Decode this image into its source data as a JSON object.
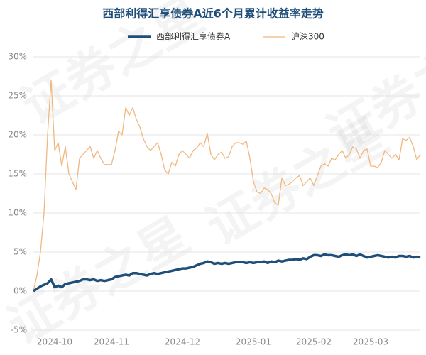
{
  "chart_data": {
    "type": "line",
    "title": "西部利得汇享债券A近6个月累计收益率走势",
    "watermark": "证券之星",
    "categories": [
      null,
      null,
      null,
      null,
      null,
      null,
      "2024-10",
      null,
      null,
      null,
      null,
      null,
      null,
      null,
      null,
      null,
      null,
      null,
      null,
      null,
      null,
      null,
      "2024-11",
      null,
      null,
      null,
      null,
      null,
      null,
      null,
      null,
      null,
      null,
      null,
      null,
      null,
      null,
      null,
      null,
      null,
      null,
      null,
      "2024-12",
      null,
      null,
      null,
      null,
      null,
      null,
      null,
      null,
      null,
      null,
      null,
      null,
      null,
      null,
      null,
      null,
      null,
      null,
      null,
      "2025-01",
      null,
      null,
      null,
      null,
      null,
      null,
      null,
      null,
      null,
      null,
      null,
      null,
      null,
      null,
      null,
      null,
      "2025-02",
      null,
      null,
      null,
      null,
      null,
      null,
      null,
      null,
      null,
      null,
      null,
      null,
      null,
      null,
      null,
      "2025-03",
      null,
      null,
      null,
      null,
      null,
      null,
      null,
      null,
      null,
      null,
      null,
      null,
      null,
      null
    ],
    "series": [
      {
        "name": "西部利得汇享债券A",
        "color": "#1f4e79",
        "width": 3.5,
        "values": [
          0,
          0.3,
          0.6,
          0.8,
          1.0,
          1.5,
          0.5,
          0.7,
          0.5,
          0.9,
          1.0,
          1.1,
          1.2,
          1.3,
          1.5,
          1.5,
          1.4,
          1.5,
          1.3,
          1.4,
          1.3,
          1.4,
          1.5,
          1.8,
          1.9,
          2.0,
          2.1,
          2.0,
          2.3,
          2.3,
          2.2,
          2.1,
          2.0,
          2.2,
          2.3,
          2.2,
          2.3,
          2.4,
          2.5,
          2.6,
          2.7,
          2.8,
          2.9,
          2.9,
          3.0,
          3.1,
          3.3,
          3.5,
          3.6,
          3.8,
          3.7,
          3.5,
          3.6,
          3.5,
          3.6,
          3.5,
          3.6,
          3.7,
          3.7,
          3.7,
          3.6,
          3.7,
          3.6,
          3.7,
          3.7,
          3.8,
          3.6,
          3.8,
          3.7,
          3.9,
          3.8,
          3.9,
          4.0,
          4.0,
          4.1,
          4.0,
          4.2,
          4.1,
          4.4,
          4.6,
          4.6,
          4.5,
          4.7,
          4.6,
          4.6,
          4.5,
          4.4,
          4.6,
          4.7,
          4.6,
          4.7,
          4.5,
          4.7,
          4.5,
          4.3,
          4.4,
          4.5,
          4.6,
          4.5,
          4.4,
          4.3,
          4.4,
          4.3,
          4.5,
          4.5,
          4.4,
          4.5,
          4.3,
          4.4,
          4.3
        ]
      },
      {
        "name": "沪深300",
        "color": "#f0b880",
        "width": 1.3,
        "values": [
          0,
          2,
          5,
          10,
          20,
          27,
          18,
          19,
          16,
          18.5,
          15,
          14,
          13,
          17,
          17.5,
          18,
          18.5,
          17,
          18,
          17,
          16.2,
          16.2,
          16.2,
          18,
          20.5,
          20,
          23.5,
          22.5,
          23.5,
          22,
          21,
          19.5,
          18.5,
          18,
          18.5,
          19,
          17.5,
          15.5,
          15,
          16.5,
          16,
          17.5,
          18,
          17.5,
          17,
          18,
          18.3,
          19,
          18.5,
          20.2,
          17.5,
          16.8,
          17.5,
          17.8,
          17,
          17.2,
          18.5,
          19,
          19,
          18.8,
          19.2,
          17,
          14,
          12.7,
          12.5,
          13.2,
          13,
          12.5,
          11.3,
          11,
          14.5,
          13.5,
          13.7,
          14,
          14.5,
          14.8,
          13.5,
          14,
          14.5,
          13.5,
          14.8,
          16,
          16.3,
          16,
          17,
          16.8,
          17.5,
          18,
          17,
          17.5,
          18.5,
          18.2,
          17,
          18,
          18.2,
          16,
          16,
          15.8,
          16.5,
          18,
          17.5,
          17,
          17.5,
          16.8,
          19.5,
          19.3,
          19.7,
          18.5,
          16.8,
          17.5
        ]
      }
    ],
    "ylim": [
      -5,
      30
    ],
    "yticks": [
      {
        "value": -5,
        "label": "-5%"
      },
      {
        "value": 0,
        "label": "0%"
      },
      {
        "value": 5,
        "label": "5%"
      },
      {
        "value": 10,
        "label": "10%"
      },
      {
        "value": 15,
        "label": "15%"
      },
      {
        "value": 20,
        "label": "20%"
      },
      {
        "value": 25,
        "label": "25%"
      },
      {
        "value": 30,
        "label": "30%"
      }
    ],
    "grid": true,
    "legend": "top"
  }
}
